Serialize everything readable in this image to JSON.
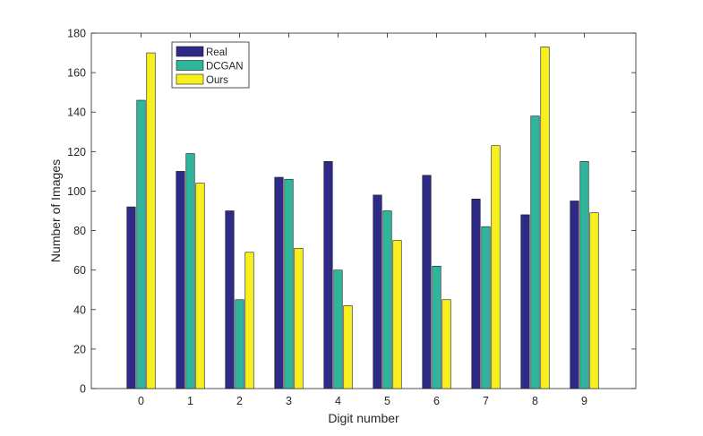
{
  "chart_data": {
    "type": "bar",
    "title": "",
    "xlabel": "Digit number",
    "ylabel": "Number of Images",
    "categories": [
      "0",
      "1",
      "2",
      "3",
      "4",
      "5",
      "6",
      "7",
      "8",
      "9"
    ],
    "series": [
      {
        "name": "Real",
        "color": "#2e2a87",
        "values": [
          92,
          110,
          90,
          107,
          115,
          98,
          108,
          96,
          88,
          95
        ]
      },
      {
        "name": "DCGAN",
        "color": "#2fb59c",
        "values": [
          146,
          119,
          45,
          106,
          60,
          90,
          62,
          82,
          138,
          115
        ]
      },
      {
        "name": "Ours",
        "color": "#f7f01e",
        "values": [
          170,
          104,
          69,
          71,
          42,
          75,
          45,
          123,
          173,
          89
        ]
      }
    ],
    "ylim": [
      0,
      180
    ],
    "yticks": [
      0,
      20,
      40,
      60,
      80,
      100,
      120,
      140,
      160,
      180
    ],
    "grid": false,
    "legend_position": "top-left"
  }
}
